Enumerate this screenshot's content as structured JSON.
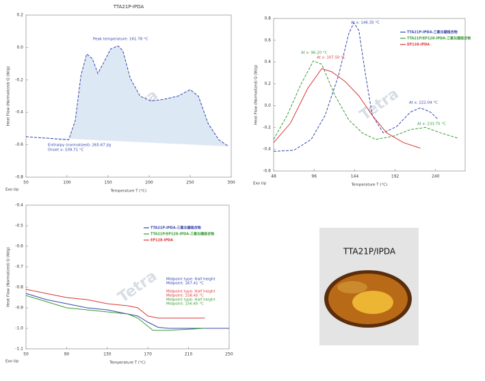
{
  "chart_data": [
    {
      "type": "line",
      "title": "TTA21P-IPDA",
      "x_label": "Temperature T (°C)",
      "y_label": "Heat Flow (Normalized) Q (W/g)",
      "corner_label": "Exo Up",
      "xlim": [
        50,
        300
      ],
      "xticks": [
        50,
        100,
        150,
        200,
        250,
        300
      ],
      "ylim": [
        -0.8,
        0.2
      ],
      "yticks": [
        0.2,
        {
          "value": 0,
          "label": "0.0"
        },
        -0.2,
        -0.4,
        -0.6,
        -0.8
      ],
      "x": [
        50,
        102,
        110,
        117,
        124,
        131,
        137.5,
        145,
        153,
        162,
        168,
        177,
        189,
        202,
        218,
        235,
        250,
        260,
        272,
        285,
        297
      ],
      "series": [
        {
          "color": "#3344aa",
          "fill": "#dde8f5",
          "dashed": true,
          "values": [
            -0.55,
            -0.57,
            -0.45,
            -0.17,
            -0.04,
            -0.07,
            -0.16,
            -0.09,
            -0.01,
            0.01,
            -0.02,
            -0.19,
            -0.3,
            -0.33,
            -0.32,
            -0.3,
            -0.26,
            -0.3,
            -0.47,
            -0.57,
            -0.61
          ]
        }
      ],
      "annotations": [
        "Peak temperature: 161.78 °C",
        "Enthalpy (normalized): 265.67 J/g",
        "Onset x: 109.71 °C"
      ]
    },
    {
      "type": "line",
      "x_label": "Temperature T (°C)",
      "y_label": "Heat Flow (Normalized) Q (W/g)",
      "corner_label": "Exo Up",
      "xlim": [
        48,
        275
      ],
      "xticks": [
        48,
        96,
        144,
        192,
        240
      ],
      "ylim": [
        -0.6,
        0.8
      ],
      "yticks": [
        0.8,
        0.6,
        0.4,
        0.2,
        {
          "value": 0,
          "label": "0.0"
        },
        -0.2,
        -0.4,
        -0.6
      ],
      "legend": "top-right",
      "series": [
        {
          "name": "TTA21P-IPDA-三氟化硼络合物",
          "color": "#3344aa",
          "dashed": true,
          "x": [
            48,
            72,
            92.5,
            109,
            125,
            137,
            143,
            149,
            157,
            165,
            178,
            194,
            210,
            222,
            234,
            242
          ],
          "values": [
            -0.42,
            -0.41,
            -0.31,
            -0.09,
            0.28,
            0.66,
            0.76,
            0.69,
            0.28,
            -0.09,
            -0.25,
            -0.19,
            -0.06,
            -0.02,
            -0.06,
            -0.12
          ]
        },
        {
          "name": "TTA21P/EP128-IPDA-三氟化硼络合物",
          "color": "#339933",
          "dashed": true,
          "x": [
            48,
            64,
            80,
            95,
            105,
            121,
            137,
            153,
            169,
            190,
            210,
            228,
            246,
            267
          ],
          "values": [
            -0.31,
            -0.09,
            0.19,
            0.41,
            0.38,
            0.09,
            -0.13,
            -0.25,
            -0.31,
            -0.28,
            -0.22,
            -0.2,
            -0.25,
            -0.3
          ]
        },
        {
          "name": "EP128-IPDA",
          "color": "#dd3333",
          "dashed": false,
          "x": [
            48,
            68,
            88.5,
            105,
            117,
            133,
            149,
            165,
            182,
            202,
            222
          ],
          "values": [
            -0.34,
            -0.16,
            0.16,
            0.34,
            0.31,
            0.22,
            0.09,
            -0.09,
            -0.25,
            -0.34,
            -0.39
          ]
        }
      ],
      "annotations": [
        "At x: 146.35 °C",
        "At x: 96.20 °C",
        "At x: 107.50 °C",
        "At x: 222.04 °C",
        "At x: 233.75 °C"
      ]
    },
    {
      "type": "line",
      "x_label": "Temperature T (°C)",
      "y_label": "Heat Flow (Normalized) Q (W/g)",
      "corner_label": "Exo Up",
      "xlim": [
        50,
        250
      ],
      "xticks": [
        50,
        90,
        130,
        170,
        210,
        250
      ],
      "ylim": [
        -1.1,
        -0.4
      ],
      "yticks": [
        -0.4,
        -0.5,
        -0.6,
        -0.7,
        -0.8,
        -0.9,
        {
          "value": -1,
          "label": "-1.0"
        },
        -1.1
      ],
      "legend": "upper-middle",
      "series": [
        {
          "name": "TTA21P-IPDA-三氟化硼络合物",
          "color": "#3344aa",
          "dashed": false,
          "x": [
            50,
            70,
            90,
            110,
            130,
            150,
            160,
            170,
            180,
            190,
            210,
            250
          ],
          "values": [
            -0.83,
            -0.86,
            -0.88,
            -0.9,
            -0.91,
            -0.93,
            -0.94,
            -0.97,
            -0.995,
            -1.0,
            -1.0,
            -1.0
          ]
        },
        {
          "name": "TTA21P/EP128-IPDA-三氟化硼络合物",
          "color": "#339933",
          "dashed": false,
          "x": [
            50,
            70,
            90,
            110,
            130,
            150,
            160,
            170,
            175,
            190,
            226
          ],
          "values": [
            -0.84,
            -0.87,
            -0.9,
            -0.91,
            -0.92,
            -0.93,
            -0.95,
            -0.99,
            -1.01,
            -1.01,
            -1.0
          ]
        },
        {
          "name": "EP128-IPDA",
          "color": "#dd3333",
          "dashed": false,
          "x": [
            50,
            70,
            90,
            110,
            130,
            150,
            160,
            170,
            180,
            210,
            226
          ],
          "values": [
            -0.81,
            -0.83,
            -0.85,
            -0.86,
            -0.88,
            -0.89,
            -0.9,
            -0.94,
            -0.95,
            -0.95,
            -0.95
          ]
        }
      ],
      "annotations": [
        "Midpoint type: Half height",
        "Midpoint: 167.41 °C",
        "Midpoint type: Half height",
        "Midpoint: 158.45 °C",
        "Midpoint type: Half height",
        "Midpoint: 156.65 °C"
      ]
    }
  ],
  "watermark": "Tetra",
  "photo": {
    "caption": "TTA21P/IPDA"
  }
}
